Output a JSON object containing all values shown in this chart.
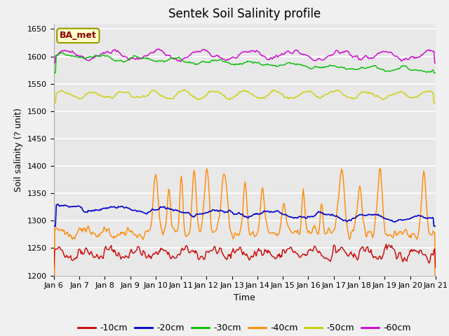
{
  "title": "Sentek Soil Salinity profile",
  "xlabel": "Time",
  "ylabel": "Soil salinity (? unit)",
  "ylim": [
    1200,
    1660
  ],
  "yticks": [
    1200,
    1250,
    1300,
    1350,
    1400,
    1450,
    1500,
    1550,
    1600,
    1650
  ],
  "xtick_labels": [
    "Jan 6",
    "Jan 7",
    "Jan 8",
    "Jan 9",
    "Jan 10",
    "Jan 11",
    "Jan 12",
    "Jan 13",
    "Jan 14",
    "Jan 15",
    "Jan 16",
    "Jan 17",
    "Jan 18",
    "Jan 19",
    "Jan 20",
    "Jan 21"
  ],
  "n_points": 480,
  "colors": {
    "-10cm": "#cc0000",
    "-20cm": "#0000cc",
    "-30cm": "#00bb00",
    "-40cm": "#ff8800",
    "-50cm": "#cccc00",
    "-60cm": "#cc00cc"
  },
  "legend_label": "BA_met",
  "fig_bg_color": "#f0f0f0",
  "plot_bg_color": "#e8e8e8",
  "grid_color": "#ffffff",
  "title_fontsize": 12,
  "axis_fontsize": 9,
  "tick_fontsize": 8
}
